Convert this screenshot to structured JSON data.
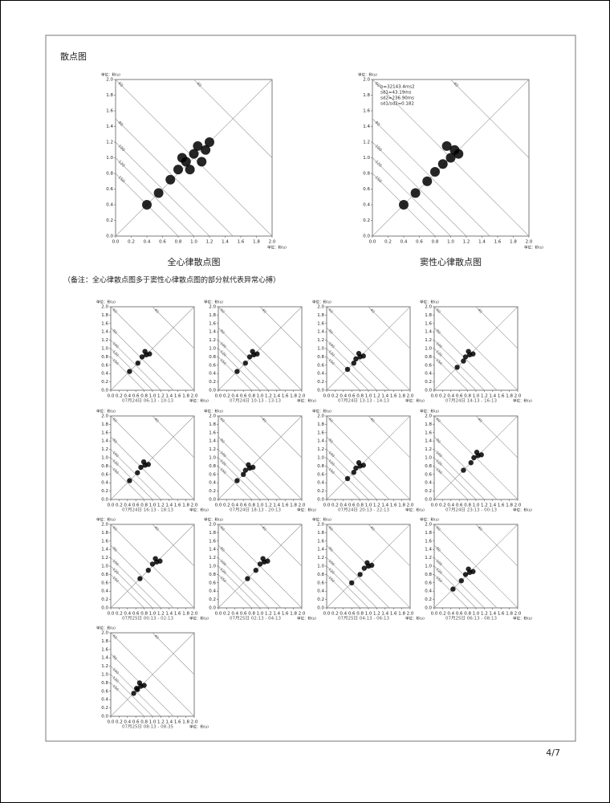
{
  "page": {
    "section_title": "散点图",
    "note": "（备注：全心律散点图多于窦性心律散点图的部分就代表异常心搏）",
    "page_number": "4/7"
  },
  "chart_data": [
    {
      "type": "scatter",
      "title": "全心律散点图",
      "unit": "单位：秒(s)",
      "xlim": [
        0,
        2
      ],
      "ylim": [
        0,
        2
      ],
      "xticks": [
        {
          "value": 0,
          "label": "0.0"
        },
        0.2,
        0.4,
        0.6,
        0.8,
        {
          "value": 1,
          "label": "1.0"
        },
        1.2,
        1.4,
        1.6,
        1.8,
        {
          "value": 2,
          "label": "2.0"
        }
      ],
      "yticks": [
        {
          "value": 0,
          "label": "0.0"
        },
        0.2,
        0.4,
        0.6,
        0.8,
        {
          "value": 1,
          "label": "1.0"
        },
        1.2,
        1.4,
        1.6,
        1.8,
        {
          "value": 2,
          "label": "2.0"
        }
      ],
      "rate_lines": [
        40,
        60,
        80,
        100,
        120,
        150
      ],
      "x": [
        0.4,
        0.55,
        0.7,
        0.8,
        0.9,
        1.0,
        1.05,
        1.15,
        0.95,
        1.1,
        0.85,
        1.2
      ],
      "y": [
        0.4,
        0.55,
        0.72,
        0.85,
        0.95,
        1.05,
        1.15,
        1.1,
        0.85,
        0.95,
        1.0,
        1.2
      ]
    },
    {
      "type": "scatter",
      "title": "窦性心律散点图",
      "unit": "单位：秒(s)",
      "annotations": [
        "b=32143.4ms2",
        "sd1=43.19ms",
        "sd2=236.90ms",
        "sd1/sd2=0.182"
      ],
      "xlim": [
        0,
        2
      ],
      "ylim": [
        0,
        2
      ],
      "xticks": [
        {
          "value": 0,
          "label": "0.0"
        },
        0.2,
        0.4,
        0.6,
        0.8,
        {
          "value": 1,
          "label": "1.0"
        },
        1.2,
        1.4,
        1.6,
        1.8,
        {
          "value": 2,
          "label": "2.0"
        }
      ],
      "yticks": [
        {
          "value": 0,
          "label": "0.0"
        },
        0.2,
        0.4,
        0.6,
        0.8,
        {
          "value": 1,
          "label": "1.0"
        },
        1.2,
        1.4,
        1.6,
        1.8,
        {
          "value": 2,
          "label": "2.0"
        }
      ],
      "rate_lines": [
        40,
        60,
        80,
        100,
        120,
        150
      ],
      "x": [
        0.4,
        0.55,
        0.7,
        0.8,
        0.9,
        1.0,
        1.05,
        1.1,
        0.95
      ],
      "y": [
        0.4,
        0.55,
        0.7,
        0.82,
        0.92,
        1.0,
        1.1,
        1.05,
        1.15
      ]
    },
    {
      "type": "scatter",
      "subtitle": "07月24日 06:13 - 10:13",
      "unit": "单位：秒(s)",
      "xlim": [
        0,
        2
      ],
      "ylim": [
        0,
        2
      ],
      "xticks": [
        {
          "value": 0,
          "label": "0.0"
        },
        0.2,
        0.4,
        0.6,
        0.8,
        {
          "value": 1,
          "label": "1.0"
        },
        1.2,
        1.4,
        1.6,
        1.8,
        {
          "value": 2,
          "label": "2.0"
        }
      ],
      "yticks": [
        {
          "value": 0,
          "label": "0.0"
        },
        0.2,
        0.4,
        0.6,
        0.8,
        {
          "value": 1,
          "label": "1.0"
        },
        1.2,
        1.4,
        1.6,
        1.8,
        {
          "value": 2,
          "label": "2.0"
        }
      ],
      "rate_lines": [
        40,
        60,
        80,
        100,
        120,
        150
      ],
      "x": [
        0.45,
        0.65,
        0.75,
        0.85,
        0.93,
        0.82
      ],
      "y": [
        0.45,
        0.65,
        0.8,
        0.85,
        0.87,
        0.93
      ]
    },
    {
      "type": "scatter",
      "subtitle": "07月24日 10:13 - 13:13",
      "unit": "单位：秒(s)",
      "xlim": [
        0,
        2
      ],
      "ylim": [
        0,
        2
      ],
      "xticks": [
        {
          "value": 0,
          "label": "0.0"
        },
        0.2,
        0.4,
        0.6,
        0.8,
        {
          "value": 1,
          "label": "1.0"
        },
        1.2,
        1.4,
        1.6,
        1.8,
        {
          "value": 2,
          "label": "2.0"
        }
      ],
      "yticks": [
        {
          "value": 0,
          "label": "0.0"
        },
        0.2,
        0.4,
        0.6,
        0.8,
        {
          "value": 1,
          "label": "1.0"
        },
        1.2,
        1.4,
        1.6,
        1.8,
        {
          "value": 2,
          "label": "2.0"
        }
      ],
      "rate_lines": [
        40,
        60,
        80,
        100,
        120,
        150
      ],
      "x": [
        0.45,
        0.65,
        0.75,
        0.85,
        0.93,
        0.82
      ],
      "y": [
        0.45,
        0.65,
        0.8,
        0.85,
        0.87,
        0.93
      ]
    },
    {
      "type": "scatter",
      "subtitle": "07月24日 13:13 - 14:13",
      "unit": "单位：秒(s)",
      "xlim": [
        0,
        2
      ],
      "ylim": [
        0,
        2
      ],
      "xticks": [
        {
          "value": 0,
          "label": "0.0"
        },
        0.2,
        0.4,
        0.6,
        0.8,
        {
          "value": 1,
          "label": "1.0"
        },
        1.2,
        1.4,
        1.6,
        1.8,
        {
          "value": 2,
          "label": "2.0"
        }
      ],
      "yticks": [
        {
          "value": 0,
          "label": "0.0"
        },
        0.2,
        0.4,
        0.6,
        0.8,
        {
          "value": 1,
          "label": "1.0"
        },
        1.2,
        1.4,
        1.6,
        1.8,
        {
          "value": 2,
          "label": "2.0"
        }
      ],
      "rate_lines": [
        40,
        60,
        80,
        100,
        120,
        150
      ],
      "x": [
        0.5,
        0.65,
        0.7,
        0.8,
        0.88,
        0.77
      ],
      "y": [
        0.5,
        0.65,
        0.75,
        0.8,
        0.82,
        0.88
      ]
    },
    {
      "type": "scatter",
      "subtitle": "07月24日 14:13 - 16:13",
      "unit": "单位：秒(s)",
      "xlim": [
        0,
        2
      ],
      "ylim": [
        0,
        2
      ],
      "xticks": [
        {
          "value": 0,
          "label": "0.0"
        },
        0.2,
        0.4,
        0.6,
        0.8,
        {
          "value": 1,
          "label": "1.0"
        },
        1.2,
        1.4,
        1.6,
        1.8,
        {
          "value": 2,
          "label": "2.0"
        }
      ],
      "yticks": [
        {
          "value": 0,
          "label": "0.0"
        },
        0.2,
        0.4,
        0.6,
        0.8,
        {
          "value": 1,
          "label": "1.0"
        },
        1.2,
        1.4,
        1.6,
        1.8,
        {
          "value": 2,
          "label": "2.0"
        }
      ],
      "rate_lines": [
        40,
        60,
        80,
        100,
        120,
        150
      ],
      "x": [
        0.55,
        0.7,
        0.75,
        0.85,
        0.93,
        0.82
      ],
      "y": [
        0.55,
        0.7,
        0.8,
        0.85,
        0.87,
        0.93
      ]
    },
    {
      "type": "scatter",
      "subtitle": "07月24日 16:13 - 18:13",
      "unit": "单位：秒(s)",
      "xlim": [
        0,
        2
      ],
      "ylim": [
        0,
        2
      ],
      "xticks": [
        {
          "value": 0,
          "label": "0.0"
        },
        0.2,
        0.4,
        0.6,
        0.8,
        {
          "value": 1,
          "label": "1.0"
        },
        1.2,
        1.4,
        1.6,
        1.8,
        {
          "value": 2,
          "label": "2.0"
        }
      ],
      "yticks": [
        {
          "value": 0,
          "label": "0.0"
        },
        0.2,
        0.4,
        0.6,
        0.8,
        {
          "value": 1,
          "label": "1.0"
        },
        1.2,
        1.4,
        1.6,
        1.8,
        {
          "value": 2,
          "label": "2.0"
        }
      ],
      "rate_lines": [
        40,
        60,
        80,
        100,
        120,
        150
      ],
      "x": [
        0.45,
        0.64,
        0.72,
        0.82,
        0.9,
        0.79
      ],
      "y": [
        0.45,
        0.64,
        0.77,
        0.82,
        0.84,
        0.9
      ]
    },
    {
      "type": "scatter",
      "subtitle": "07月24日 18:13 - 20:13",
      "unit": "单位：秒(s)",
      "xlim": [
        0,
        2
      ],
      "ylim": [
        0,
        2
      ],
      "xticks": [
        {
          "value": 0,
          "label": "0.0"
        },
        0.2,
        0.4,
        0.6,
        0.8,
        {
          "value": 1,
          "label": "1.0"
        },
        1.2,
        1.4,
        1.6,
        1.8,
        {
          "value": 2,
          "label": "2.0"
        }
      ],
      "yticks": [
        {
          "value": 0,
          "label": "0.0"
        },
        0.2,
        0.4,
        0.6,
        0.8,
        {
          "value": 1,
          "label": "1.0"
        },
        1.2,
        1.4,
        1.6,
        1.8,
        {
          "value": 2,
          "label": "2.0"
        }
      ],
      "rate_lines": [
        40,
        60,
        80,
        100,
        120,
        150
      ],
      "x": [
        0.45,
        0.6,
        0.65,
        0.75,
        0.83,
        0.72
      ],
      "y": [
        0.45,
        0.6,
        0.7,
        0.75,
        0.77,
        0.83
      ]
    },
    {
      "type": "scatter",
      "subtitle": "07月24日 20:13 - 22:13",
      "unit": "单位：秒(s)",
      "xlim": [
        0,
        2
      ],
      "ylim": [
        0,
        2
      ],
      "xticks": [
        {
          "value": 0,
          "label": "0.0"
        },
        0.2,
        0.4,
        0.6,
        0.8,
        {
          "value": 1,
          "label": "1.0"
        },
        1.2,
        1.4,
        1.6,
        1.8,
        {
          "value": 2,
          "label": "2.0"
        }
      ],
      "yticks": [
        {
          "value": 0,
          "label": "0.0"
        },
        0.2,
        0.4,
        0.6,
        0.8,
        {
          "value": 1,
          "label": "1.0"
        },
        1.2,
        1.4,
        1.6,
        1.8,
        {
          "value": 2,
          "label": "2.0"
        }
      ],
      "rate_lines": [
        40,
        60,
        80,
        100,
        120,
        150
      ],
      "x": [
        0.5,
        0.65,
        0.7,
        0.8,
        0.88,
        0.77
      ],
      "y": [
        0.5,
        0.65,
        0.75,
        0.8,
        0.82,
        0.88
      ]
    },
    {
      "type": "scatter",
      "subtitle": "07月24日 23:13 - 00:13",
      "unit": "单位：秒(s)",
      "xlim": [
        0,
        2
      ],
      "ylim": [
        0,
        2
      ],
      "xticks": [
        {
          "value": 0,
          "label": "0.0"
        },
        0.2,
        0.4,
        0.6,
        0.8,
        {
          "value": 1,
          "label": "1.0"
        },
        1.2,
        1.4,
        1.6,
        1.8,
        {
          "value": 2,
          "label": "2.0"
        }
      ],
      "yticks": [
        {
          "value": 0,
          "label": "0.0"
        },
        0.2,
        0.4,
        0.6,
        0.8,
        {
          "value": 1,
          "label": "1.0"
        },
        1.2,
        1.4,
        1.6,
        1.8,
        {
          "value": 2,
          "label": "2.0"
        }
      ],
      "rate_lines": [
        40,
        60,
        80,
        100,
        120,
        150
      ],
      "x": [
        0.7,
        0.88,
        0.95,
        1.05,
        1.13,
        1.02
      ],
      "y": [
        0.7,
        0.88,
        1,
        1.05,
        1.07,
        1.13
      ]
    },
    {
      "type": "scatter",
      "subtitle": "07月25日 00:13 - 02:13",
      "unit": "单位：秒(s)",
      "xlim": [
        0,
        2
      ],
      "ylim": [
        0,
        2
      ],
      "xticks": [
        {
          "value": 0,
          "label": "0.0"
        },
        0.2,
        0.4,
        0.6,
        0.8,
        {
          "value": 1,
          "label": "1.0"
        },
        1.2,
        1.4,
        1.6,
        1.8,
        {
          "value": 2,
          "label": "2.0"
        }
      ],
      "yticks": [
        {
          "value": 0,
          "label": "0.0"
        },
        0.2,
        0.4,
        0.6,
        0.8,
        {
          "value": 1,
          "label": "1.0"
        },
        1.2,
        1.4,
        1.6,
        1.8,
        {
          "value": 2,
          "label": "2.0"
        }
      ],
      "rate_lines": [
        40,
        60,
        80,
        100,
        120,
        150
      ],
      "x": [
        0.7,
        0.9,
        1,
        1.1,
        1.18,
        1.07
      ],
      "y": [
        0.7,
        0.9,
        1.05,
        1.1,
        1.12,
        1.18
      ]
    },
    {
      "type": "scatter",
      "subtitle": "07月25日 02:13 - 04:13",
      "unit": "单位：秒(s)",
      "xlim": [
        0,
        2
      ],
      "ylim": [
        0,
        2
      ],
      "xticks": [
        {
          "value": 0,
          "label": "0.0"
        },
        0.2,
        0.4,
        0.6,
        0.8,
        {
          "value": 1,
          "label": "1.0"
        },
        1.2,
        1.4,
        1.6,
        1.8,
        {
          "value": 2,
          "label": "2.0"
        }
      ],
      "yticks": [
        {
          "value": 0,
          "label": "0.0"
        },
        0.2,
        0.4,
        0.6,
        0.8,
        {
          "value": 1,
          "label": "1.0"
        },
        1.2,
        1.4,
        1.6,
        1.8,
        {
          "value": 2,
          "label": "2.0"
        }
      ],
      "rate_lines": [
        40,
        60,
        80,
        100,
        120,
        150
      ],
      "x": [
        0.7,
        0.9,
        1,
        1.1,
        1.18,
        1.07
      ],
      "y": [
        0.7,
        0.9,
        1.05,
        1.1,
        1.12,
        1.18
      ]
    },
    {
      "type": "scatter",
      "subtitle": "07月25日 04:13 - 06:13",
      "unit": "单位：秒(s)",
      "xlim": [
        0,
        2
      ],
      "ylim": [
        0,
        2
      ],
      "xticks": [
        {
          "value": 0,
          "label": "0.0"
        },
        0.2,
        0.4,
        0.6,
        0.8,
        {
          "value": 1,
          "label": "1.0"
        },
        1.2,
        1.4,
        1.6,
        1.8,
        {
          "value": 2,
          "label": "2.0"
        }
      ],
      "yticks": [
        {
          "value": 0,
          "label": "0.0"
        },
        0.2,
        0.4,
        0.6,
        0.8,
        {
          "value": 1,
          "label": "1.0"
        },
        1.2,
        1.4,
        1.6,
        1.8,
        {
          "value": 2,
          "label": "2.0"
        }
      ],
      "rate_lines": [
        40,
        60,
        80,
        100,
        120,
        150
      ],
      "x": [
        0.6,
        0.8,
        0.9,
        1,
        1.08,
        0.97
      ],
      "y": [
        0.6,
        0.8,
        0.95,
        1,
        1.02,
        1.08
      ]
    },
    {
      "type": "scatter",
      "subtitle": "07月25日 06:13 - 08:13",
      "unit": "单位：秒(s)",
      "xlim": [
        0,
        2
      ],
      "ylim": [
        0,
        2
      ],
      "xticks": [
        {
          "value": 0,
          "label": "0.0"
        },
        0.2,
        0.4,
        0.6,
        0.8,
        {
          "value": 1,
          "label": "1.0"
        },
        1.2,
        1.4,
        1.6,
        1.8,
        {
          "value": 2,
          "label": "2.0"
        }
      ],
      "yticks": [
        {
          "value": 0,
          "label": "0.0"
        },
        0.2,
        0.4,
        0.6,
        0.8,
        {
          "value": 1,
          "label": "1.0"
        },
        1.2,
        1.4,
        1.6,
        1.8,
        {
          "value": 2,
          "label": "2.0"
        }
      ],
      "rate_lines": [
        40,
        60,
        80,
        100,
        120,
        150
      ],
      "x": [
        0.45,
        0.65,
        0.75,
        0.85,
        0.93,
        0.82
      ],
      "y": [
        0.45,
        0.65,
        0.8,
        0.85,
        0.87,
        0.93
      ]
    },
    {
      "type": "scatter",
      "subtitle": "07月25日 08:13 - 08:35",
      "unit": "单位：秒(s)",
      "xlim": [
        0,
        2
      ],
      "ylim": [
        0,
        2
      ],
      "xticks": [
        {
          "value": 0,
          "label": "0.0"
        },
        0.2,
        0.4,
        0.6,
        0.8,
        {
          "value": 1,
          "label": "1.0"
        },
        1.2,
        1.4,
        1.6,
        1.8,
        {
          "value": 2,
          "label": "2.0"
        }
      ],
      "yticks": [
        {
          "value": 0,
          "label": "0.0"
        },
        0.2,
        0.4,
        0.6,
        0.8,
        {
          "value": 1,
          "label": "1.0"
        },
        1.2,
        1.4,
        1.6,
        1.8,
        {
          "value": 2,
          "label": "2.0"
        }
      ],
      "rate_lines": [
        40,
        60,
        80,
        100,
        120,
        150
      ],
      "x": [
        0.55,
        0.64,
        0.62,
        0.72,
        0.8,
        0.69
      ],
      "y": [
        0.55,
        0.64,
        0.67,
        0.72,
        0.74,
        0.8
      ]
    }
  ]
}
